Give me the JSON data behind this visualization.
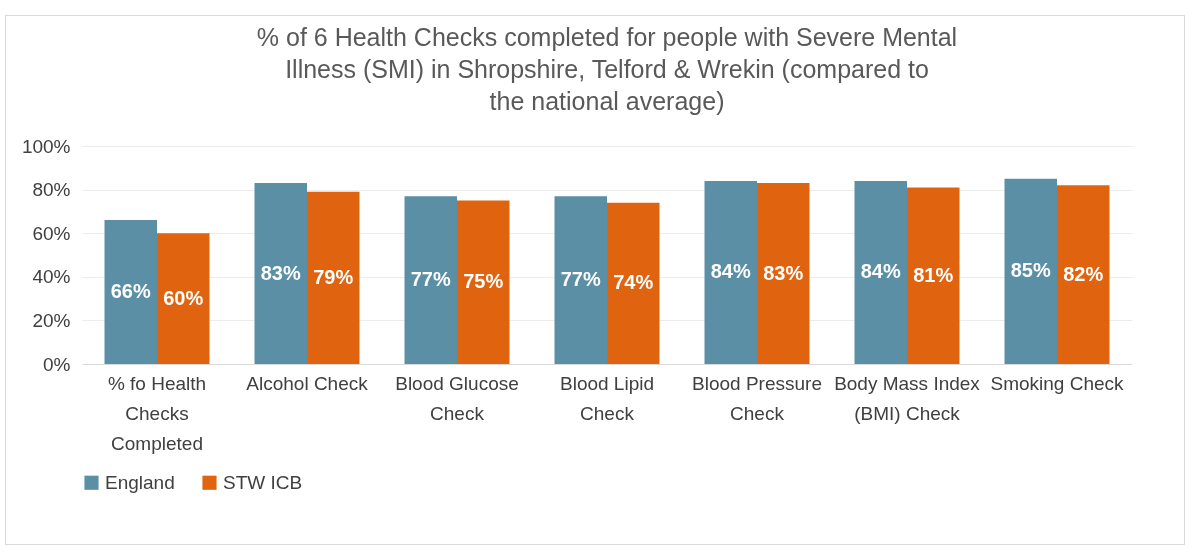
{
  "chart_data": {
    "type": "bar",
    "title": "% of 6 Health Checks completed for people with Severe Mental Illness (SMI) in Shropshire, Telford & Wrekin (compared to the national average)",
    "categories": [
      "% fo Health Checks Completed",
      "Alcohol Check",
      "Blood Glucose Check",
      "Blood Lipid Check",
      "Blood Pressure Check",
      "Body Mass Index (BMI) Check",
      "Smoking Check"
    ],
    "series": [
      {
        "name": "England",
        "color": "#5b8fa6",
        "values": [
          66,
          83,
          77,
          77,
          84,
          84,
          85
        ],
        "value_labels": [
          "66%",
          "83%",
          "77%",
          "77%",
          "84%",
          "84%",
          "85%"
        ]
      },
      {
        "name": "STW ICB",
        "color": "#e0640f",
        "values": [
          60,
          79,
          75,
          74,
          83,
          81,
          82
        ],
        "value_labels": [
          "60%",
          "79%",
          "75%",
          "74%",
          "83%",
          "81%",
          "82%"
        ]
      }
    ],
    "ylim": [
      0,
      100
    ],
    "yticks": [
      {
        "value": 0,
        "label": "0%"
      },
      {
        "value": 20,
        "label": "20%"
      },
      {
        "value": 40,
        "label": "40%"
      },
      {
        "value": 60,
        "label": "60%"
      },
      {
        "value": 80,
        "label": "80%"
      },
      {
        "value": 100,
        "label": "100%"
      }
    ],
    "grid": "y",
    "legend": "bottom"
  }
}
